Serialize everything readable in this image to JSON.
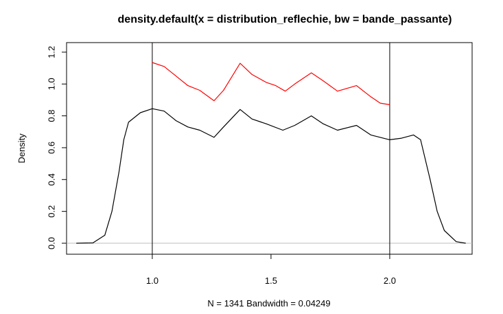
{
  "chart_data": {
    "type": "line",
    "title": "density.default(x = distribution_reflechie, bw = bande_passante)",
    "xlabel": "N = 1341   Bandwidth = 0.04249",
    "ylabel": "Density",
    "xlim": [
      0.639,
      2.347
    ],
    "ylim": [
      -0.069,
      1.26
    ],
    "xticks": [
      {
        "value": 1,
        "label": "1.0"
      },
      1.5,
      {
        "value": 2,
        "label": "2.0"
      }
    ],
    "yticks": [
      {
        "value": 0,
        "label": "0.0"
      },
      0.2,
      0.4,
      0.6,
      0.8,
      {
        "value": 1,
        "label": "1.0"
      },
      1.2
    ],
    "vlines": [
      1,
      2
    ],
    "vline_color": "#000000",
    "hline": 0,
    "hline_color": "#bebebe",
    "series": [
      {
        "color": "#000000",
        "x": [
          0.68,
          0.75,
          0.8,
          0.83,
          0.86,
          0.88,
          0.9,
          0.95,
          1.0,
          1.05,
          1.1,
          1.15,
          1.2,
          1.26,
          1.3,
          1.37,
          1.42,
          1.48,
          1.55,
          1.6,
          1.67,
          1.72,
          1.78,
          1.86,
          1.92,
          2.0,
          2.05,
          2.1,
          2.13,
          2.17,
          2.2,
          2.23,
          2.28,
          2.32
        ],
        "values": [
          0,
          0.002,
          0.05,
          0.2,
          0.45,
          0.65,
          0.76,
          0.82,
          0.845,
          0.83,
          0.77,
          0.73,
          0.71,
          0.665,
          0.73,
          0.84,
          0.78,
          0.75,
          0.71,
          0.74,
          0.8,
          0.75,
          0.71,
          0.74,
          0.68,
          0.65,
          0.66,
          0.68,
          0.65,
          0.4,
          0.2,
          0.08,
          0.01,
          0
        ]
      },
      {
        "color": "#ff0000",
        "x": [
          1.0,
          1.05,
          1.1,
          1.15,
          1.2,
          1.26,
          1.3,
          1.37,
          1.42,
          1.48,
          1.52,
          1.56,
          1.6,
          1.67,
          1.72,
          1.78,
          1.86,
          1.92,
          1.96,
          2.0
        ],
        "values": [
          1.135,
          1.11,
          1.05,
          0.99,
          0.96,
          0.895,
          0.96,
          1.13,
          1.06,
          1.01,
          0.99,
          0.955,
          1.0,
          1.07,
          1.02,
          0.955,
          0.99,
          0.92,
          0.88,
          0.87
        ]
      }
    ]
  }
}
